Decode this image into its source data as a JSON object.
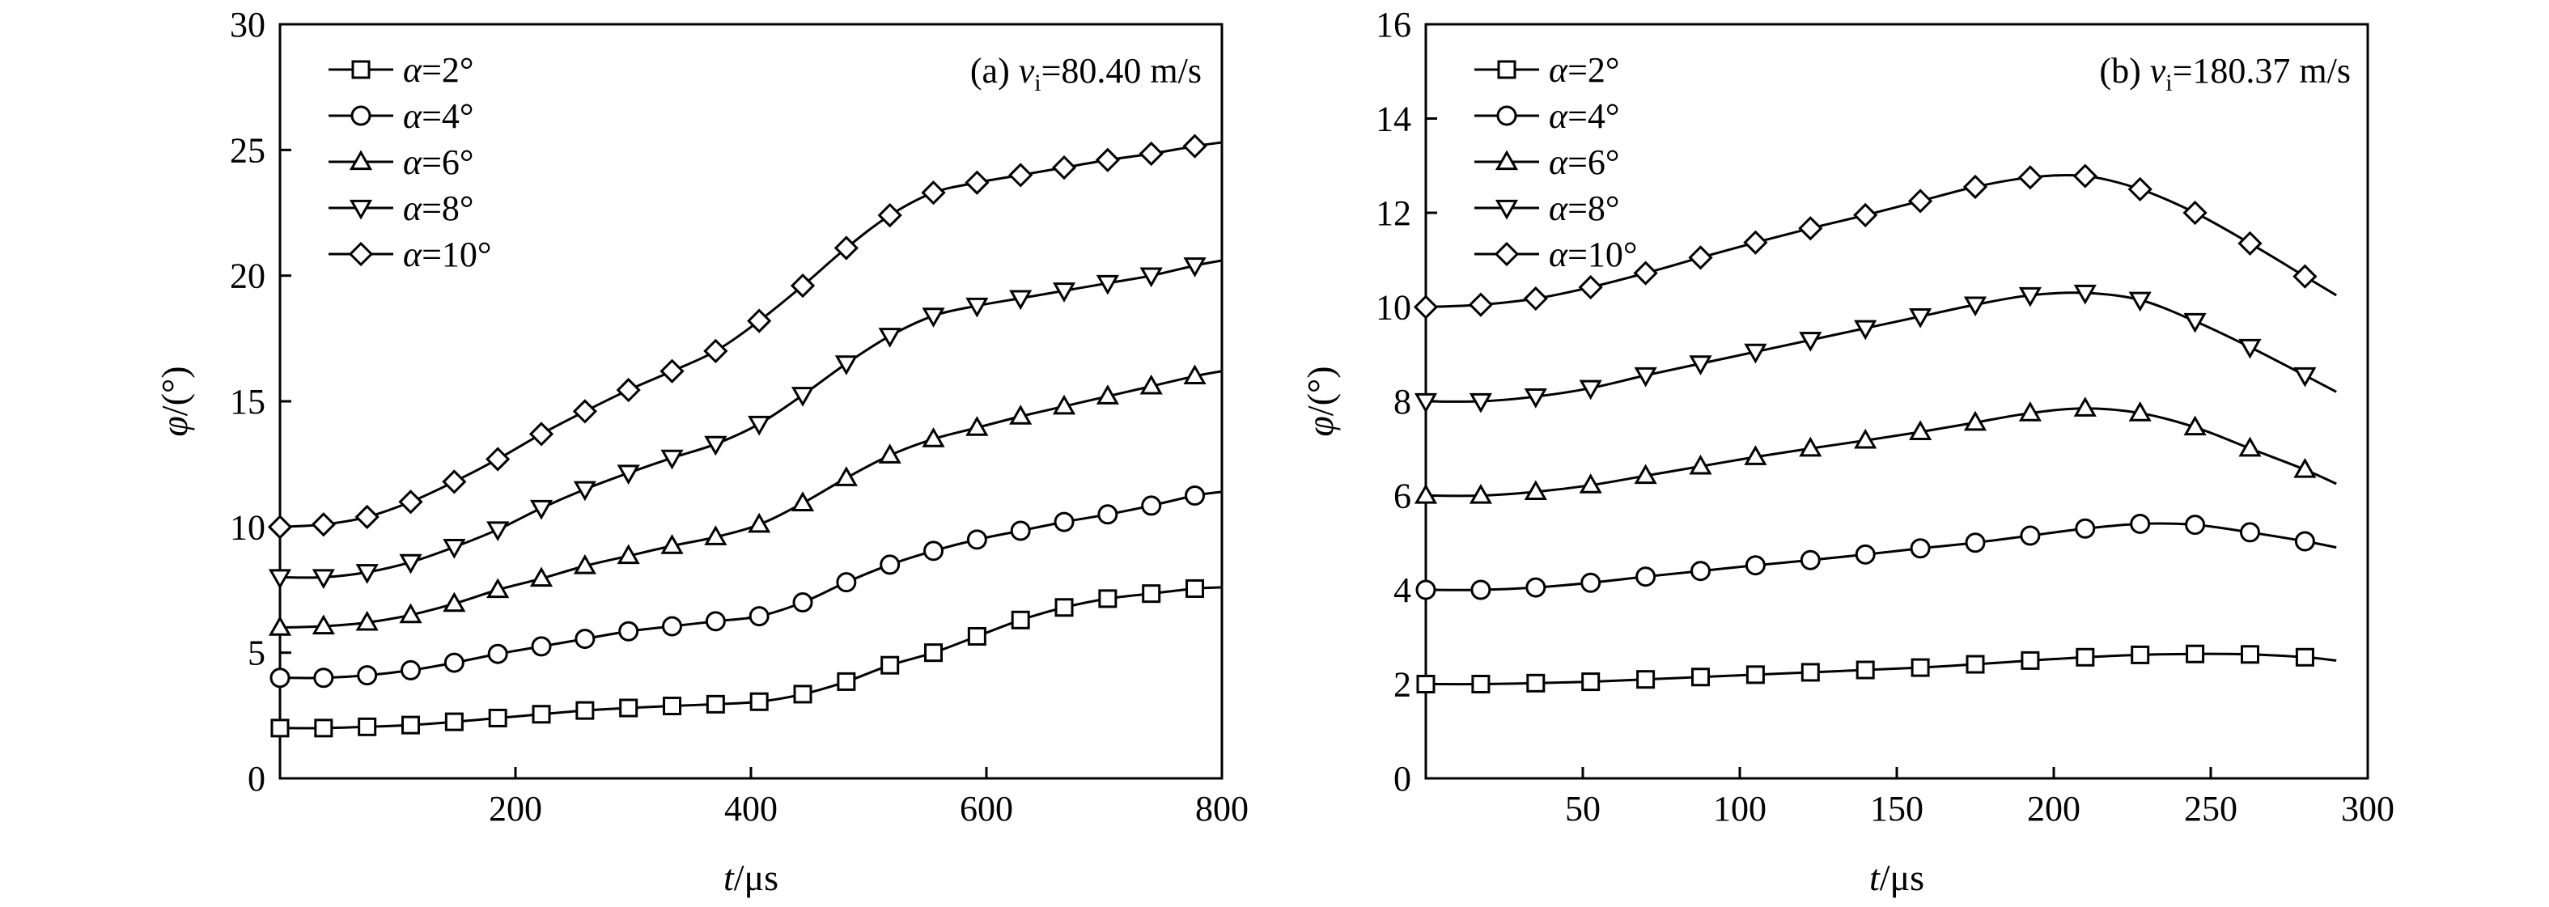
{
  "chart_data": [
    {
      "type": "line",
      "panel": "(a)",
      "annotation": {
        "prefix": "(a) ",
        "var": "v",
        "sub": "i",
        "value": "=80.40 m/s"
      },
      "xlabel": {
        "var": "t",
        "unit": "/μs"
      },
      "ylabel": {
        "var": "φ",
        "unit": "/(°)"
      },
      "xlim": [
        0,
        800
      ],
      "ylim": [
        0,
        30
      ],
      "xticks": [
        200,
        400,
        600,
        800
      ],
      "yticks": [
        0,
        5,
        10,
        15,
        20,
        25,
        30
      ],
      "grid": false,
      "legend": "top-left",
      "x": [
        0,
        37,
        74,
        111,
        148,
        185,
        222,
        259,
        296,
        333,
        370,
        407,
        444,
        481,
        518,
        555,
        592,
        629,
        666,
        703,
        740,
        777,
        800
      ],
      "series": [
        {
          "name": "α=2°",
          "label_var": "α",
          "label_value": "=2°",
          "marker": "square",
          "values": [
            2.0,
            2.0,
            2.05,
            2.12,
            2.25,
            2.4,
            2.55,
            2.7,
            2.8,
            2.88,
            2.95,
            3.05,
            3.35,
            3.85,
            4.5,
            5.0,
            5.65,
            6.3,
            6.8,
            7.15,
            7.35,
            7.55,
            7.6
          ]
        },
        {
          "name": "α=4°",
          "label_var": "α",
          "label_value": "=4°",
          "marker": "circle",
          "values": [
            4.0,
            4.0,
            4.1,
            4.3,
            4.6,
            4.95,
            5.25,
            5.55,
            5.85,
            6.05,
            6.25,
            6.45,
            7.0,
            7.8,
            8.5,
            9.05,
            9.5,
            9.85,
            10.2,
            10.5,
            10.85,
            11.25,
            11.4
          ]
        },
        {
          "name": "α=6°",
          "label_var": "α",
          "label_value": "=6°",
          "marker": "triangle-up",
          "values": [
            6.0,
            6.05,
            6.2,
            6.5,
            6.95,
            7.5,
            7.95,
            8.45,
            8.85,
            9.25,
            9.6,
            10.1,
            10.95,
            11.95,
            12.85,
            13.5,
            13.95,
            14.4,
            14.8,
            15.2,
            15.6,
            16.0,
            16.2
          ]
        },
        {
          "name": "α=8°",
          "label_var": "α",
          "label_value": "=8°",
          "marker": "triangle-down",
          "values": [
            8.0,
            8.0,
            8.2,
            8.6,
            9.2,
            9.9,
            10.75,
            11.5,
            12.15,
            12.75,
            13.3,
            14.1,
            15.25,
            16.5,
            17.6,
            18.4,
            18.8,
            19.1,
            19.4,
            19.7,
            20.0,
            20.4,
            20.6
          ]
        },
        {
          "name": "α=10°",
          "label_var": "α",
          "label_value": "=10°",
          "marker": "diamond",
          "values": [
            10.0,
            10.1,
            10.4,
            11.0,
            11.8,
            12.7,
            13.7,
            14.6,
            15.45,
            16.2,
            17.0,
            18.2,
            19.6,
            21.1,
            22.4,
            23.3,
            23.7,
            24.0,
            24.3,
            24.6,
            24.85,
            25.15,
            25.3
          ]
        }
      ]
    },
    {
      "type": "line",
      "panel": "(b)",
      "annotation": {
        "prefix": "(b) ",
        "var": "v",
        "sub": "i",
        "value": "=180.37 m/s"
      },
      "xlabel": {
        "var": "t",
        "unit": "/μs"
      },
      "ylabel": {
        "var": "φ",
        "unit": "/(°)"
      },
      "xlim": [
        0,
        300
      ],
      "ylim": [
        0,
        16
      ],
      "xticks": [
        50,
        100,
        150,
        200,
        250,
        300
      ],
      "yticks": [
        0,
        2,
        4,
        6,
        8,
        10,
        12,
        14,
        16
      ],
      "grid": false,
      "legend": "top-left",
      "x": [
        0,
        17.5,
        35,
        52.5,
        70,
        87.5,
        105,
        122.5,
        140,
        157.5,
        175,
        192.5,
        210,
        227.5,
        245,
        262.5,
        280,
        290
      ],
      "series": [
        {
          "name": "α=2°",
          "label_var": "α",
          "label_value": "=2°",
          "marker": "square",
          "values": [
            2.0,
            2.0,
            2.02,
            2.05,
            2.1,
            2.15,
            2.2,
            2.25,
            2.3,
            2.35,
            2.42,
            2.5,
            2.57,
            2.62,
            2.64,
            2.63,
            2.57,
            2.5
          ]
        },
        {
          "name": "α=4°",
          "label_var": "α",
          "label_value": "=4°",
          "marker": "circle",
          "values": [
            4.0,
            4.0,
            4.05,
            4.15,
            4.28,
            4.4,
            4.52,
            4.63,
            4.75,
            4.88,
            5.0,
            5.15,
            5.3,
            5.4,
            5.38,
            5.22,
            5.03,
            4.9
          ]
        },
        {
          "name": "α=6°",
          "label_var": "α",
          "label_value": "=6°",
          "marker": "triangle-up",
          "values": [
            6.0,
            6.0,
            6.08,
            6.22,
            6.42,
            6.62,
            6.82,
            7.0,
            7.17,
            7.35,
            7.55,
            7.75,
            7.85,
            7.75,
            7.45,
            7.0,
            6.55,
            6.25
          ]
        },
        {
          "name": "α=8°",
          "label_var": "α",
          "label_value": "=8°",
          "marker": "triangle-down",
          "values": [
            8.0,
            8.0,
            8.1,
            8.28,
            8.55,
            8.8,
            9.05,
            9.3,
            9.55,
            9.8,
            10.05,
            10.25,
            10.3,
            10.15,
            9.7,
            9.15,
            8.55,
            8.2
          ]
        },
        {
          "name": "α=10°",
          "label_var": "α",
          "label_value": "=10°",
          "marker": "diamond",
          "values": [
            10.0,
            10.05,
            10.18,
            10.42,
            10.72,
            11.05,
            11.37,
            11.67,
            11.95,
            12.25,
            12.55,
            12.75,
            12.78,
            12.5,
            12.0,
            11.35,
            10.65,
            10.25
          ]
        }
      ]
    }
  ]
}
